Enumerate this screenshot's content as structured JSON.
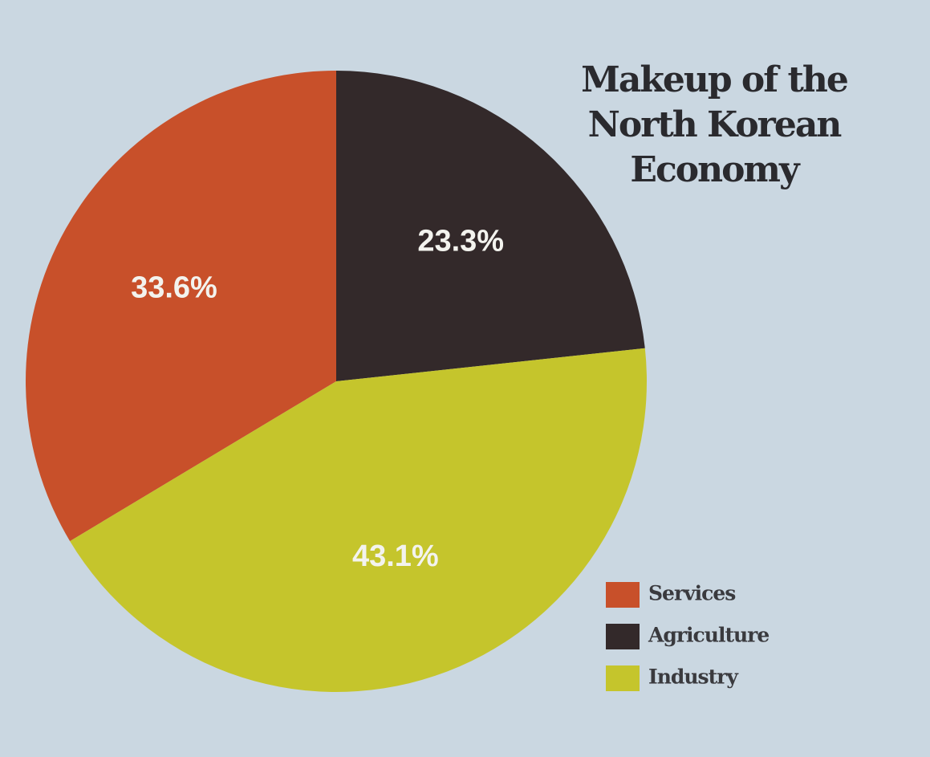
{
  "chart_data": {
    "type": "pie",
    "title": "Makeup of the North Korean Economy",
    "categories": [
      "Services",
      "Agriculture",
      "Industry"
    ],
    "values": [
      33.6,
      23.3,
      43.1
    ],
    "value_labels": [
      "33.6%",
      "23.3%",
      "43.1%"
    ],
    "colors": [
      "#c8502a",
      "#33292a",
      "#c5c52c"
    ]
  }
}
